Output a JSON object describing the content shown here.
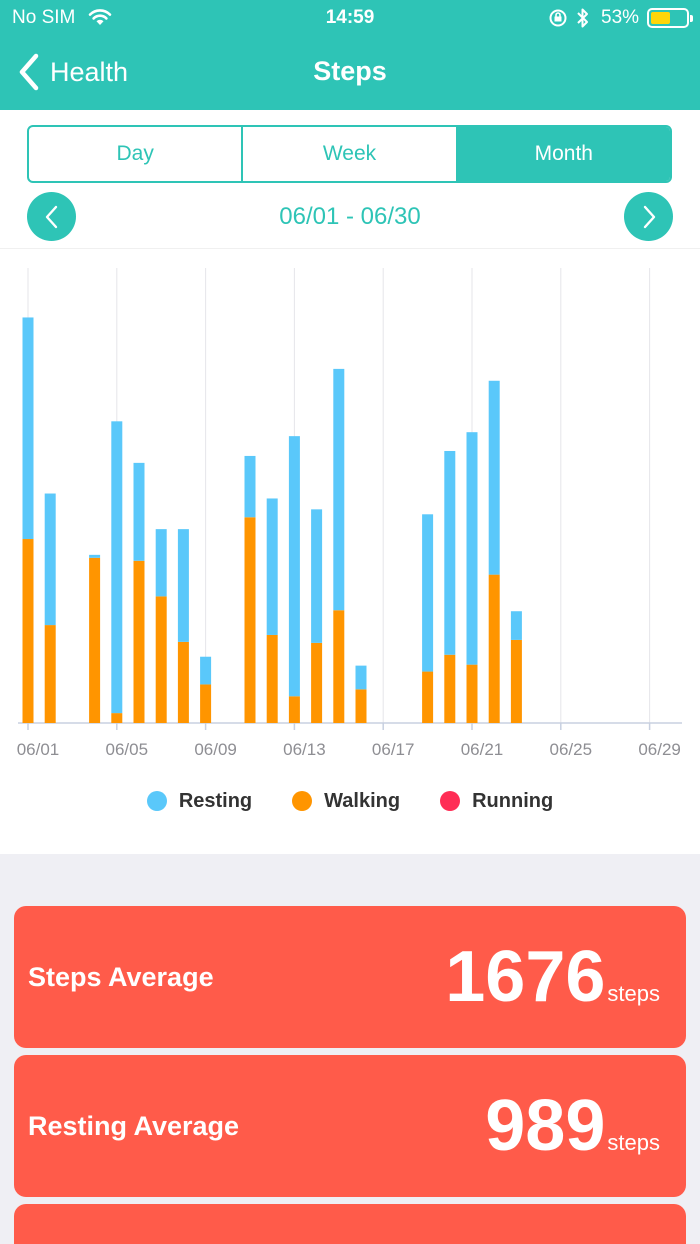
{
  "status_bar": {
    "carrier": "No SIM",
    "time": "14:59",
    "battery_percent": "53%",
    "battery_level": 0.53,
    "icons": [
      "wifi-icon",
      "orientation-lock-icon",
      "bluetooth-icon",
      "battery-icon"
    ]
  },
  "nav": {
    "back_label": "Health",
    "title": "Steps"
  },
  "tabs": [
    {
      "label": "Day",
      "active": false
    },
    {
      "label": "Week",
      "active": false
    },
    {
      "label": "Month",
      "active": true
    }
  ],
  "range": {
    "label": "06/01 - 06/30",
    "prev_icon": "chevron-left-icon",
    "next_icon": "chevron-right-icon"
  },
  "legend": [
    {
      "label": "Resting",
      "color": "#5ac8fa"
    },
    {
      "label": "Walking",
      "color": "#ff9500"
    },
    {
      "label": "Running",
      "color": "#ff2d55"
    }
  ],
  "colors": {
    "accent": "#2ec4b6",
    "card": "#ff5b4a",
    "resting": "#5ac8fa",
    "walking": "#ff9500",
    "running": "#ff2d55"
  },
  "chart_data": {
    "type": "bar",
    "stacked": true,
    "x_tick_labels": [
      "06/01",
      "06/05",
      "06/09",
      "06/13",
      "06/17",
      "06/21",
      "06/25",
      "06/29"
    ],
    "categories": [
      "06/01",
      "06/02",
      "06/03",
      "06/04",
      "06/05",
      "06/06",
      "06/07",
      "06/08",
      "06/09",
      "06/10",
      "06/11",
      "06/12",
      "06/13",
      "06/14",
      "06/15",
      "06/16",
      "06/17",
      "06/18",
      "06/19",
      "06/20",
      "06/21",
      "06/22",
      "06/23",
      "06/24",
      "06/25",
      "06/26",
      "06/27",
      "06/28",
      "06/29",
      "06/30"
    ],
    "series": [
      {
        "name": "Walking",
        "color": "#ff9500",
        "values": [
          1860,
          990,
          0,
          1670,
          100,
          1640,
          1280,
          820,
          390,
          0,
          2080,
          890,
          270,
          810,
          1140,
          340,
          0,
          0,
          520,
          690,
          590,
          1500,
          840,
          0,
          0,
          0,
          0,
          0,
          0,
          0
        ]
      },
      {
        "name": "Resting",
        "color": "#5ac8fa",
        "values": [
          2240,
          1330,
          0,
          30,
          2950,
          990,
          680,
          1140,
          280,
          0,
          620,
          1380,
          2630,
          1350,
          2440,
          240,
          0,
          0,
          1590,
          2060,
          2350,
          1960,
          290,
          0,
          0,
          0,
          0,
          0,
          0,
          0
        ]
      },
      {
        "name": "Running",
        "color": "#ff2d55",
        "values": [
          0,
          0,
          0,
          0,
          0,
          0,
          0,
          0,
          0,
          0,
          0,
          0,
          0,
          0,
          0,
          0,
          0,
          0,
          0,
          0,
          0,
          0,
          0,
          0,
          0,
          0,
          0,
          0,
          0,
          0
        ]
      }
    ],
    "ylim": [
      0,
      4600
    ],
    "grid": "vertical",
    "legend_position": "bottom"
  },
  "stats": [
    {
      "label": "Steps Average",
      "value": "1676",
      "unit": "steps"
    },
    {
      "label": "Resting Average",
      "value": "989",
      "unit": "steps"
    }
  ]
}
